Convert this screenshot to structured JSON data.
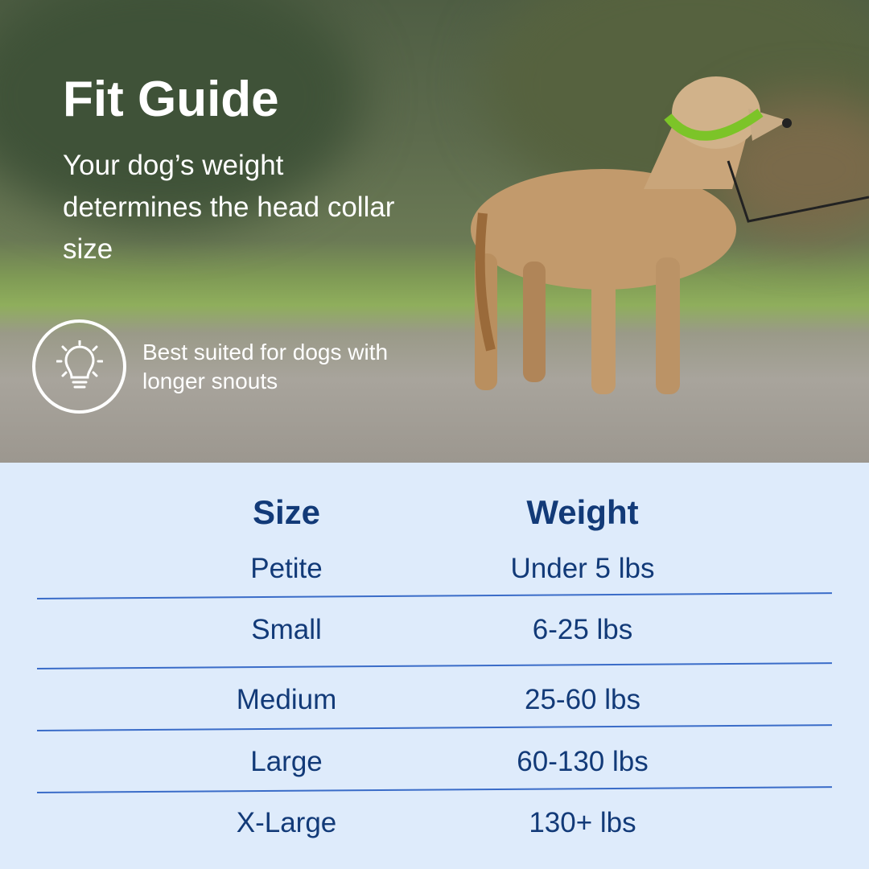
{
  "header": {
    "title": "Fit Guide",
    "subtitle": "Your dog’s weight determines the head collar size"
  },
  "note": {
    "icon": "lightbulb-icon",
    "text": "Best suited for dogs with longer snouts"
  },
  "table": {
    "columns": [
      "Size",
      "Weight"
    ],
    "rows": [
      [
        "Petite",
        "Under 5 lbs"
      ],
      [
        "Small",
        "6-25 lbs"
      ],
      [
        "Medium",
        "25-60 lbs"
      ],
      [
        "Large",
        "60-130 lbs"
      ],
      [
        "X-Large",
        "130+ lbs"
      ]
    ]
  },
  "colors": {
    "text_navy": "#123a78",
    "table_bg": "#deebfb",
    "divider": "#3a6cc8",
    "collar_green": "#7cc428"
  }
}
